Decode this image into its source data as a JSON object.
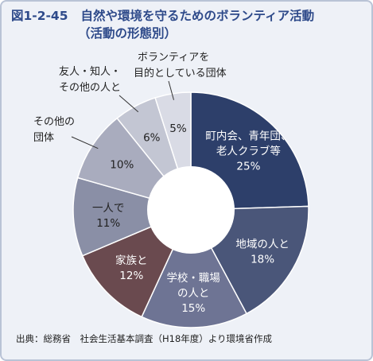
{
  "title": {
    "figure_no": "図1-2-45",
    "text": "自然や環境を守るためのボランティア活動",
    "subtitle": "（活動の形態別）"
  },
  "source": "出典：総務省　社会生活基本調査（H18年度）より環境省作成",
  "chart_data": {
    "type": "pie",
    "variant": "donut",
    "title": "自然や環境を守るためのボランティア活動（活動の形態別）",
    "unit": "%",
    "legend": "none (labels on slices)",
    "slices": [
      {
        "label_lines": [
          "町内会、青年団、",
          "老人クラブ等"
        ],
        "value": 25,
        "value_label": "25%",
        "color": "#2d3f6a",
        "text_color": "#ffffff"
      },
      {
        "label_lines": [
          "地域の人と"
        ],
        "value": 18,
        "value_label": "18%",
        "color": "#4a5679",
        "text_color": "#ffffff"
      },
      {
        "label_lines": [
          "学校・職場",
          "の人と"
        ],
        "value": 15,
        "value_label": "15%",
        "color": "#6e7494",
        "text_color": "#ffffff"
      },
      {
        "label_lines": [
          "家族と"
        ],
        "value": 12,
        "value_label": "12%",
        "color": "#6a4a4f",
        "text_color": "#ffffff"
      },
      {
        "label_lines": [
          "一人で"
        ],
        "value": 11,
        "value_label": "11%",
        "color": "#8a8fa6",
        "text_color": "#222222"
      },
      {
        "label_lines": [
          "その他の",
          "団体"
        ],
        "value": 10,
        "value_label": "10%",
        "color": "#a9acbe",
        "text_color": "#222222"
      },
      {
        "label_lines": [
          "友人・知人・",
          "その他の人と"
        ],
        "value": 6,
        "value_label": "6%",
        "color": "#c3c6d3",
        "text_color": "#222222"
      },
      {
        "label_lines": [
          "ボランティアを",
          "目的としている団体"
        ],
        "value": 5,
        "value_label": "5%",
        "color": "#d9dbe5",
        "text_color": "#222222"
      }
    ]
  }
}
